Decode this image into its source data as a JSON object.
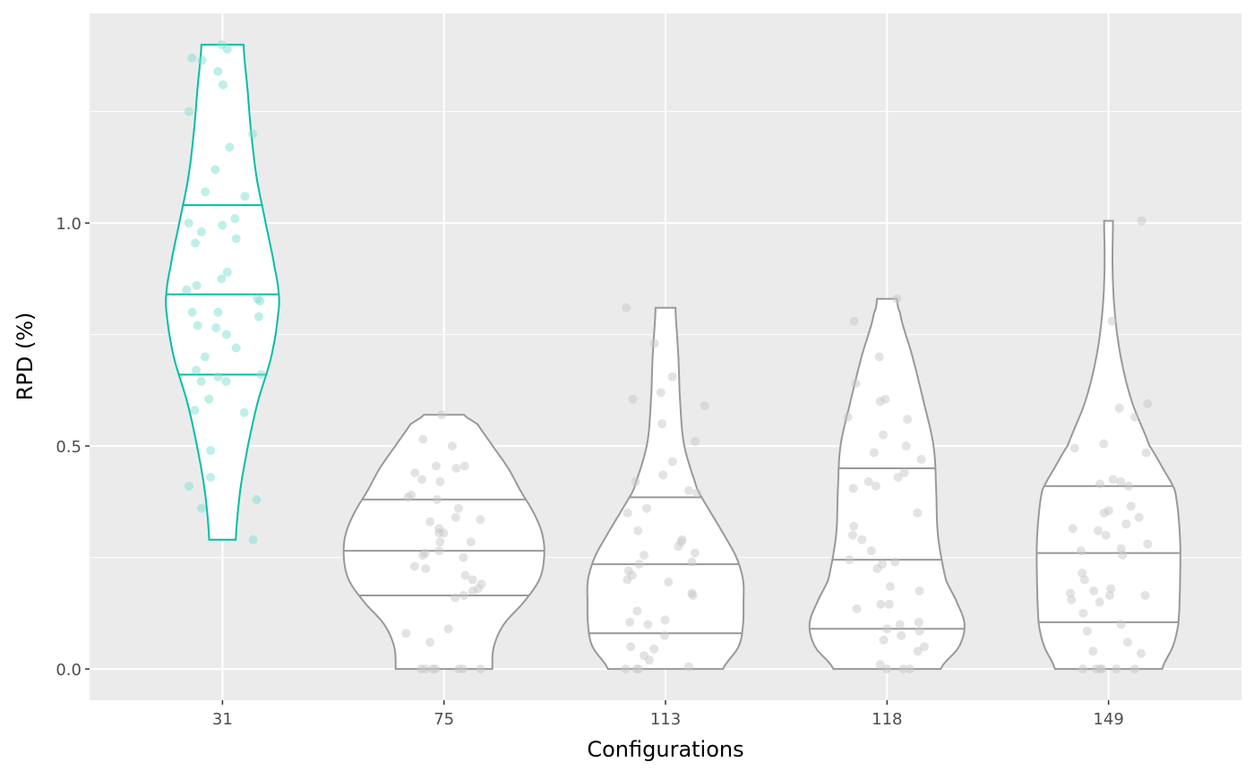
{
  "chart_data": {
    "type": "violin",
    "title": "",
    "xlabel": "Configurations",
    "ylabel": "RPD (%)",
    "ylim": [
      -0.07,
      1.47
    ],
    "yticks": [
      0.0,
      0.5,
      1.0
    ],
    "ytick_labels": [
      "0.0",
      "0.5",
      "1.0"
    ],
    "minor_yticks": [
      0.25,
      0.75,
      1.25
    ],
    "grid": true,
    "colors": {
      "highlight": "#00BFA5",
      "default": "#999999",
      "panel": "#EBEBEB",
      "grid": "#FFFFFF"
    },
    "categories": [
      "31",
      "75",
      "113",
      "118",
      "149"
    ],
    "series": [
      {
        "name": "31",
        "highlight": true,
        "quantiles": [
          0.66,
          0.84,
          1.04
        ],
        "density": [
          [
            0.29,
            0.06
          ],
          [
            0.4,
            0.08
          ],
          [
            0.5,
            0.115
          ],
          [
            0.6,
            0.16
          ],
          [
            0.7,
            0.22
          ],
          [
            0.8,
            0.252
          ],
          [
            0.84,
            0.254
          ],
          [
            0.9,
            0.235
          ],
          [
            1.0,
            0.195
          ],
          [
            1.1,
            0.155
          ],
          [
            1.2,
            0.13
          ],
          [
            1.3,
            0.113
          ],
          [
            1.4,
            0.095
          ]
        ],
        "points": [
          1.4,
          1.39,
          1.37,
          1.365,
          1.34,
          1.31,
          1.25,
          1.2,
          1.17,
          1.12,
          1.07,
          1.06,
          1.01,
          1.0,
          0.995,
          0.98,
          0.965,
          0.955,
          0.89,
          0.875,
          0.86,
          0.85,
          0.83,
          0.825,
          0.8,
          0.8,
          0.79,
          0.77,
          0.765,
          0.75,
          0.72,
          0.7,
          0.67,
          0.66,
          0.655,
          0.645,
          0.645,
          0.605,
          0.58,
          0.575,
          0.49,
          0.43,
          0.41,
          0.38,
          0.36,
          0.29
        ]
      },
      {
        "name": "75",
        "highlight": false,
        "quantiles": [
          0.165,
          0.265,
          0.38
        ],
        "density": [
          [
            0,
            0.218
          ],
          [
            0.05,
            0.225
          ],
          [
            0.1,
            0.27
          ],
          [
            0.15,
            0.36
          ],
          [
            0.2,
            0.43
          ],
          [
            0.25,
            0.452
          ],
          [
            0.3,
            0.445
          ],
          [
            0.35,
            0.405
          ],
          [
            0.4,
            0.345
          ],
          [
            0.45,
            0.29
          ],
          [
            0.5,
            0.22
          ],
          [
            0.55,
            0.15
          ],
          [
            0.57,
            0.09
          ]
        ],
        "points": [
          0.57,
          0.515,
          0.5,
          0.455,
          0.455,
          0.45,
          0.44,
          0.425,
          0.42,
          0.39,
          0.385,
          0.38,
          0.36,
          0.34,
          0.335,
          0.33,
          0.315,
          0.305,
          0.305,
          0.285,
          0.285,
          0.265,
          0.26,
          0.255,
          0.25,
          0.23,
          0.225,
          0.21,
          0.2,
          0.19,
          0.18,
          0.175,
          0.165,
          0.16,
          0.09,
          0.08,
          0.06,
          0,
          0,
          0,
          0,
          0,
          0,
          0
        ]
      },
      {
        "name": "113",
        "highlight": false,
        "quantiles": [
          0.08,
          0.235,
          0.385
        ],
        "density": [
          [
            0,
            0.26
          ],
          [
            0.05,
            0.33
          ],
          [
            0.1,
            0.35
          ],
          [
            0.15,
            0.352
          ],
          [
            0.2,
            0.35
          ],
          [
            0.25,
            0.32
          ],
          [
            0.3,
            0.265
          ],
          [
            0.35,
            0.205
          ],
          [
            0.4,
            0.145
          ],
          [
            0.5,
            0.085
          ],
          [
            0.6,
            0.066
          ],
          [
            0.7,
            0.058
          ],
          [
            0.81,
            0.045
          ]
        ],
        "points": [
          0.81,
          0.73,
          0.655,
          0.62,
          0.605,
          0.59,
          0.55,
          0.51,
          0.465,
          0.435,
          0.42,
          0.4,
          0.395,
          0.36,
          0.35,
          0.31,
          0.29,
          0.285,
          0.275,
          0.26,
          0.255,
          0.24,
          0.235,
          0.22,
          0.21,
          0.2,
          0.195,
          0.17,
          0.165,
          0.13,
          0.11,
          0.105,
          0.1,
          0.075,
          0.05,
          0.045,
          0.03,
          0.02,
          0.005,
          0,
          0,
          0
        ]
      },
      {
        "name": "118",
        "highlight": false,
        "quantiles": [
          0.09,
          0.245,
          0.45
        ],
        "density": [
          [
            0,
            0.242
          ],
          [
            0.05,
            0.325
          ],
          [
            0.1,
            0.35
          ],
          [
            0.15,
            0.315
          ],
          [
            0.2,
            0.265
          ],
          [
            0.3,
            0.23
          ],
          [
            0.4,
            0.222
          ],
          [
            0.5,
            0.21
          ],
          [
            0.6,
            0.165
          ],
          [
            0.7,
            0.115
          ],
          [
            0.8,
            0.058
          ],
          [
            0.83,
            0.045
          ]
        ],
        "points": [
          0.83,
          0.78,
          0.7,
          0.64,
          0.605,
          0.6,
          0.565,
          0.56,
          0.525,
          0.5,
          0.485,
          0.47,
          0.44,
          0.43,
          0.42,
          0.41,
          0.405,
          0.35,
          0.32,
          0.3,
          0.29,
          0.265,
          0.245,
          0.24,
          0.235,
          0.225,
          0.185,
          0.175,
          0.145,
          0.145,
          0.135,
          0.105,
          0.1,
          0.09,
          0.085,
          0.075,
          0.065,
          0.05,
          0.04,
          0.01,
          0,
          0,
          0
        ]
      },
      {
        "name": "149",
        "highlight": false,
        "quantiles": [
          0.105,
          0.26,
          0.41
        ],
        "density": [
          [
            0,
            0.242
          ],
          [
            0.05,
            0.29
          ],
          [
            0.1,
            0.315
          ],
          [
            0.2,
            0.323
          ],
          [
            0.3,
            0.322
          ],
          [
            0.4,
            0.3
          ],
          [
            0.45,
            0.245
          ],
          [
            0.5,
            0.185
          ],
          [
            0.6,
            0.105
          ],
          [
            0.7,
            0.055
          ],
          [
            0.8,
            0.028
          ],
          [
            0.9,
            0.018
          ],
          [
            1.005,
            0.02
          ]
        ],
        "points": [
          1.005,
          0.78,
          0.595,
          0.585,
          0.565,
          0.505,
          0.495,
          0.485,
          0.425,
          0.42,
          0.415,
          0.41,
          0.365,
          0.355,
          0.35,
          0.34,
          0.325,
          0.315,
          0.31,
          0.3,
          0.28,
          0.27,
          0.265,
          0.255,
          0.215,
          0.2,
          0.18,
          0.175,
          0.17,
          0.165,
          0.165,
          0.155,
          0.15,
          0.125,
          0.1,
          0.085,
          0.06,
          0.04,
          0.035,
          0,
          0,
          0,
          0,
          0,
          0
        ]
      }
    ]
  }
}
